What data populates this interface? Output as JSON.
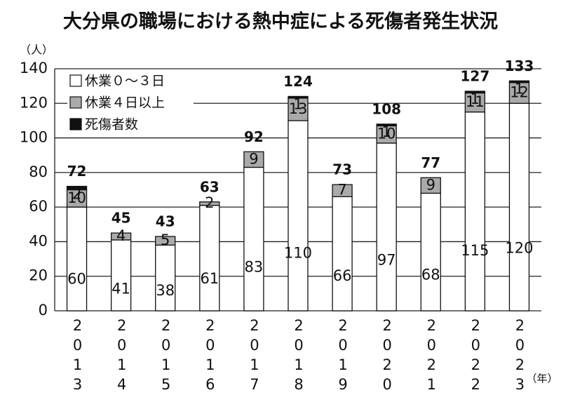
{
  "chart_data": {
    "type": "stacked-bar",
    "title": "大分県の職場における熱中症による死傷者発生状況",
    "y_label": "（人）",
    "x_label": "（年）",
    "categories": [
      "2013",
      "2014",
      "2015",
      "2016",
      "2017",
      "2018",
      "2019",
      "2020",
      "2021",
      "2022",
      "2023"
    ],
    "series": [
      {
        "name": "休業０～３日",
        "color": "#ffffff",
        "values": [
          60,
          41,
          38,
          61,
          83,
          110,
          66,
          97,
          68,
          115,
          120
        ]
      },
      {
        "name": "休業４日以上",
        "color": "#aaaaaa",
        "values": [
          10,
          4,
          5,
          2,
          9,
          13,
          7,
          10,
          9,
          11,
          12
        ]
      },
      {
        "name": "死傷者数",
        "color": "#111111",
        "values": [
          2,
          null,
          null,
          null,
          null,
          1,
          null,
          1,
          null,
          1,
          1
        ]
      }
    ],
    "totals": [
      72,
      45,
      43,
      63,
      92,
      124,
      73,
      108,
      77,
      127,
      133
    ],
    "ylim": [
      0,
      140
    ],
    "yticks": [
      0,
      20,
      40,
      60,
      80,
      100,
      120,
      140
    ],
    "grid": true
  }
}
